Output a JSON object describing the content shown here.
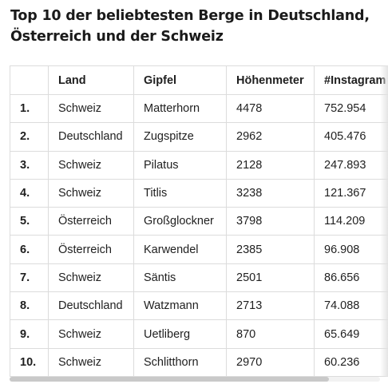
{
  "title": "Top 10 der beliebtesten Berge in Deutschland, Österreich und der Schweiz",
  "table": {
    "columns": [
      "",
      "Land",
      "Gipfel",
      "Höhenmeter",
      "#Instagram"
    ],
    "rows": [
      {
        "rank": "1.",
        "land": "Schweiz",
        "gipfel": "Matterhorn",
        "hoehe": "4478",
        "instagram": "752.954"
      },
      {
        "rank": "2.",
        "land": "Deutschland",
        "gipfel": "Zugspitze",
        "hoehe": "2962",
        "instagram": "405.476"
      },
      {
        "rank": "3.",
        "land": "Schweiz",
        "gipfel": "Pilatus",
        "hoehe": "2128",
        "instagram": "247.893"
      },
      {
        "rank": "4.",
        "land": "Schweiz",
        "gipfel": "Titlis",
        "hoehe": "3238",
        "instagram": "121.367"
      },
      {
        "rank": "5.",
        "land": "Österreich",
        "gipfel": "Großglockner",
        "hoehe": "3798",
        "instagram": "114.209"
      },
      {
        "rank": "6.",
        "land": "Österreich",
        "gipfel": "Karwendel",
        "hoehe": "2385",
        "instagram": "96.908"
      },
      {
        "rank": "7.",
        "land": "Schweiz",
        "gipfel": "Säntis",
        "hoehe": "2501",
        "instagram": "86.656"
      },
      {
        "rank": "8.",
        "land": "Deutschland",
        "gipfel": "Watzmann",
        "hoehe": "2713",
        "instagram": "74.088"
      },
      {
        "rank": "9.",
        "land": "Schweiz",
        "gipfel": "Uetliberg",
        "hoehe": "870",
        "instagram": "65.649"
      },
      {
        "rank": "10.",
        "land": "Schweiz",
        "gipfel": "Schlitthorn",
        "hoehe": "2970",
        "instagram": "60.236"
      }
    ]
  }
}
